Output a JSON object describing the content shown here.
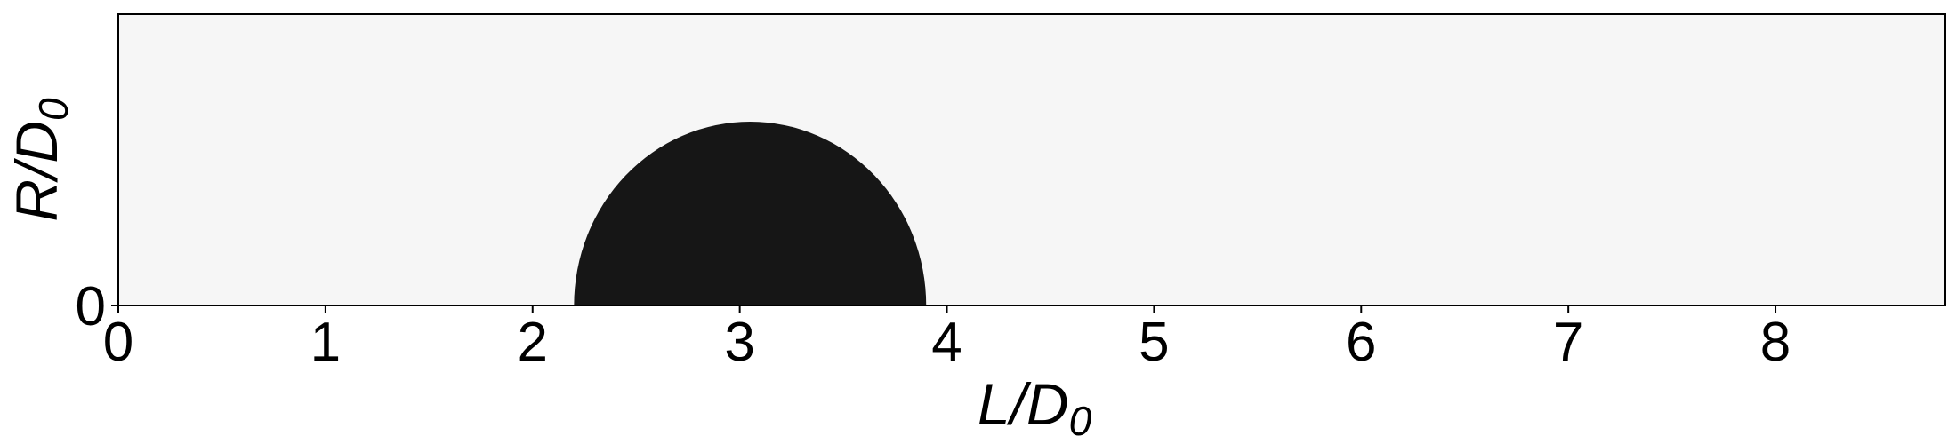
{
  "chart_data": {
    "type": "heatmap",
    "description_of_field": "binary phase field: dark region is the droplet cross-section (half-disk) sitting on the axis R=0",
    "xlabel": {
      "main": "L/D",
      "subscript": "0"
    },
    "ylabel": {
      "main": "R/D",
      "subscript": "0"
    },
    "xlim": [
      0,
      8.82
    ],
    "ylim": [
      0,
      1.41
    ],
    "xticks": [
      "0",
      "1",
      "2",
      "3",
      "4",
      "5",
      "6",
      "7",
      "8"
    ],
    "yticks": [
      "0"
    ],
    "background_color": "#f6f6f6",
    "fill_color": "#161616",
    "shape": {
      "kind": "half-disk",
      "x_left": 2.2,
      "x_right": 3.9,
      "y_top": 0.89
    },
    "grid": false,
    "legend": "none"
  }
}
